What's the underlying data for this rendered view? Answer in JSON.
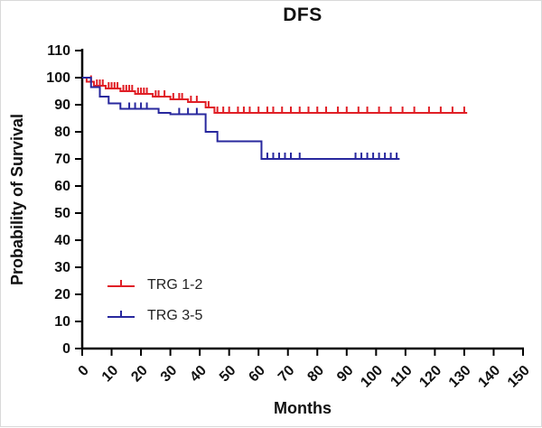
{
  "chart_data": {
    "type": "line",
    "subtype": "kaplan-meier-step",
    "title": "DFS",
    "xlabel": "Months",
    "ylabel": "Probability of Survival",
    "xlim": [
      0,
      150
    ],
    "xtick_step": 10,
    "ylim": [
      0,
      110
    ],
    "ytick_step": 10,
    "grid": false,
    "legend_position": "inside-lower-left",
    "axis_color": "#000000",
    "series": [
      {
        "name": "TRG 1-2",
        "color": "#e01f26",
        "steps": [
          [
            0,
            100
          ],
          [
            1.5,
            98.5
          ],
          [
            4,
            97
          ],
          [
            8,
            96
          ],
          [
            13,
            95
          ],
          [
            18,
            94
          ],
          [
            24,
            93
          ],
          [
            30,
            92
          ],
          [
            36,
            91
          ],
          [
            42,
            89
          ],
          [
            45,
            87
          ],
          [
            131,
            87
          ]
        ],
        "censors": [
          3,
          5,
          6,
          7,
          9,
          10,
          11,
          12,
          14,
          15,
          16,
          17,
          19,
          20,
          21,
          22,
          25,
          26,
          28,
          31,
          33,
          34,
          37,
          39,
          43,
          46,
          48,
          50,
          53,
          55,
          57,
          60,
          63,
          65,
          68,
          71,
          74,
          77,
          80,
          83,
          87,
          90,
          94,
          97,
          101,
          105,
          109,
          113,
          118,
          122,
          126,
          130
        ]
      },
      {
        "name": "TRG 3-5",
        "color": "#28289e",
        "steps": [
          [
            0,
            100
          ],
          [
            3,
            96.5
          ],
          [
            6,
            93
          ],
          [
            9,
            90.5
          ],
          [
            13,
            88.5
          ],
          [
            26,
            87
          ],
          [
            30,
            86.5
          ],
          [
            42,
            80
          ],
          [
            46,
            76.5
          ],
          [
            61,
            70
          ],
          [
            108,
            70
          ]
        ],
        "censors": [
          16,
          18,
          20,
          22,
          33,
          36,
          39,
          63,
          65,
          67,
          69,
          71,
          74,
          93,
          95,
          97,
          99,
          101,
          103,
          105,
          107
        ]
      }
    ]
  }
}
